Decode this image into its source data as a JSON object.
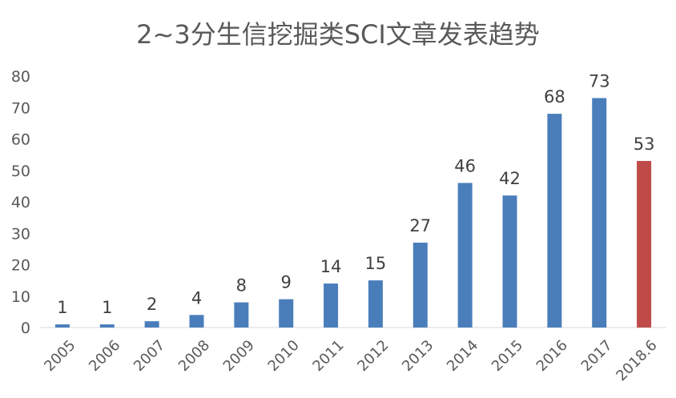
{
  "chart_data": {
    "type": "bar",
    "title": "2~3分生信挖掘类SCI文章发表趋势",
    "categories": [
      "2005",
      "2006",
      "2007",
      "2008",
      "2009",
      "2010",
      "2011",
      "2012",
      "2013",
      "2014",
      "2015",
      "2016",
      "2017",
      "2018.6"
    ],
    "values": [
      1,
      1,
      2,
      4,
      8,
      9,
      14,
      15,
      27,
      46,
      42,
      68,
      73,
      53
    ],
    "ylim": [
      0,
      80
    ],
    "yticks": [
      0,
      10,
      20,
      30,
      40,
      50,
      60,
      70,
      80
    ],
    "grid": false,
    "legend": "none",
    "colors": {
      "default_bar": "#4a7ebb",
      "highlight_bar": "#be4b48",
      "highlight_category": "2018.6",
      "text": "#595959"
    }
  }
}
